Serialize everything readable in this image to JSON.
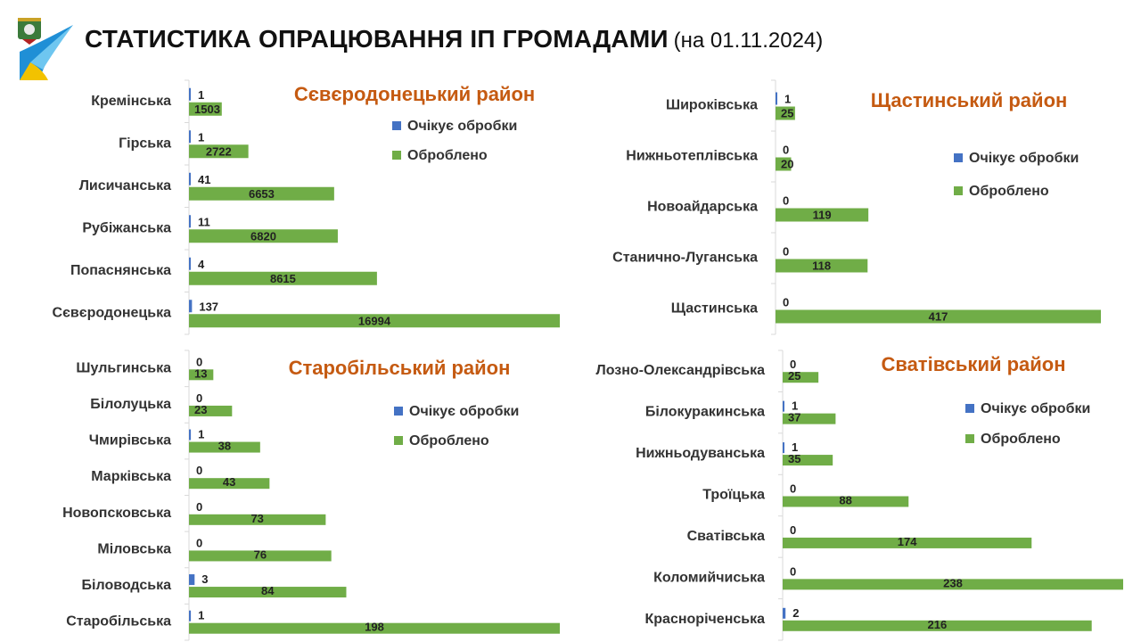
{
  "header": {
    "title": "СТАТИСТИКА ОПРАЦЮВАННЯ ІП ГРОМАДАМИ",
    "date": "(на 01.11.2024)"
  },
  "colors": {
    "pending": "#4472c4",
    "processed": "#70ad47",
    "district_title": "#c55a11"
  },
  "chart_data": [
    {
      "type": "bar",
      "orientation": "horizontal",
      "title": "Сєвєродонецький район",
      "legend_position": "right",
      "categories": [
        "Кремінська",
        "Гірська",
        "Лисичанська",
        "Рубіжанська",
        "Попаснянська",
        "Сєвєродонецька"
      ],
      "series": [
        {
          "name": "Очікує обробки",
          "values": [
            1,
            1,
            41,
            11,
            4,
            137
          ]
        },
        {
          "name": "Оброблено",
          "values": [
            1503,
            2722,
            6653,
            6820,
            8615,
            16994
          ]
        }
      ]
    },
    {
      "type": "bar",
      "orientation": "horizontal",
      "title": "Щастинський район",
      "legend_position": "right",
      "categories": [
        "Широківська",
        "Нижньотеплівська",
        "Новоайдарська",
        "Станично-Луганська",
        "Щастинська"
      ],
      "series": [
        {
          "name": "Очікує обробки",
          "values": [
            1,
            0,
            0,
            0,
            0
          ]
        },
        {
          "name": "Оброблено",
          "values": [
            25,
            20,
            119,
            118,
            417
          ]
        }
      ]
    },
    {
      "type": "bar",
      "orientation": "horizontal",
      "title": "Старобільський район",
      "legend_position": "right",
      "categories": [
        "Шульгинська",
        "Білолуцька",
        "Чмирівська",
        "Марківська",
        "Новопсковська",
        "Міловська",
        "Біловодська",
        "Старобільська"
      ],
      "series": [
        {
          "name": "Очікує обробки",
          "values": [
            0,
            0,
            1,
            0,
            0,
            0,
            3,
            1
          ]
        },
        {
          "name": "Оброблено",
          "values": [
            13,
            23,
            38,
            43,
            73,
            76,
            84,
            198
          ]
        }
      ]
    },
    {
      "type": "bar",
      "orientation": "horizontal",
      "title": "Сватівський район",
      "legend_position": "right",
      "categories": [
        "Лозно-Олександрівська",
        "Білокуракинська",
        "Нижньодуванська",
        "Троїцька",
        "Сватівська",
        "Коломийчиська",
        "Красноріченська"
      ],
      "series": [
        {
          "name": "Очікує обробки",
          "values": [
            0,
            1,
            1,
            0,
            0,
            0,
            2
          ]
        },
        {
          "name": "Оброблено",
          "values": [
            25,
            37,
            35,
            88,
            174,
            238,
            216
          ]
        }
      ]
    }
  ]
}
